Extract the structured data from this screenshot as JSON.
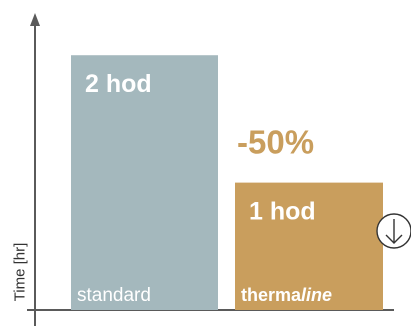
{
  "chart_data": {
    "type": "bar",
    "categories": [
      "standard",
      "thermaline"
    ],
    "values": [
      2,
      1
    ],
    "value_labels": [
      "2 hod",
      "1 hod"
    ],
    "ylabel": "Time [hr]",
    "ylim": [
      0,
      2.3
    ],
    "annotation": "-50%",
    "colors": {
      "standard": "#a4b8bd",
      "thermaline": "#c99e5d",
      "annotation": "#c99e5d",
      "axis": "#5a5a5a"
    }
  },
  "logo": {
    "part1": "therma",
    "part2": "line"
  },
  "icons": {
    "decrease": "down-arrow-circle-icon"
  }
}
